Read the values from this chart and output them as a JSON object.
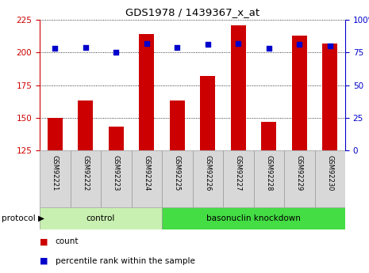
{
  "title": "GDS1978 / 1439367_x_at",
  "samples": [
    "GSM92221",
    "GSM92222",
    "GSM92223",
    "GSM92224",
    "GSM92225",
    "GSM92226",
    "GSM92227",
    "GSM92228",
    "GSM92229",
    "GSM92230"
  ],
  "count_values": [
    150,
    163,
    143,
    214,
    163,
    182,
    221,
    147,
    213,
    207
  ],
  "percentile_values": [
    78,
    79,
    75,
    82,
    79,
    81,
    82,
    78,
    81,
    80
  ],
  "ylim_left": [
    125,
    225
  ],
  "ylim_right": [
    0,
    100
  ],
  "yticks_left": [
    125,
    150,
    175,
    200,
    225
  ],
  "yticks_right": [
    0,
    25,
    50,
    75,
    100
  ],
  "bar_color": "#cc0000",
  "dot_color": "#0000cc",
  "bar_width": 0.5,
  "n_control": 4,
  "n_knockdown": 6,
  "control_label": "control",
  "knockdown_label": "basonuclin knockdown",
  "protocol_label": "protocol",
  "legend_count": "count",
  "legend_percentile": "percentile rank within the sample",
  "control_bg": "#c8f0b0",
  "knockdown_bg": "#44dd44",
  "right_axis_color": "#0000cc",
  "left_axis_color": "#cc0000",
  "label_bg": "#d8d8d8",
  "label_edge": "#999999"
}
